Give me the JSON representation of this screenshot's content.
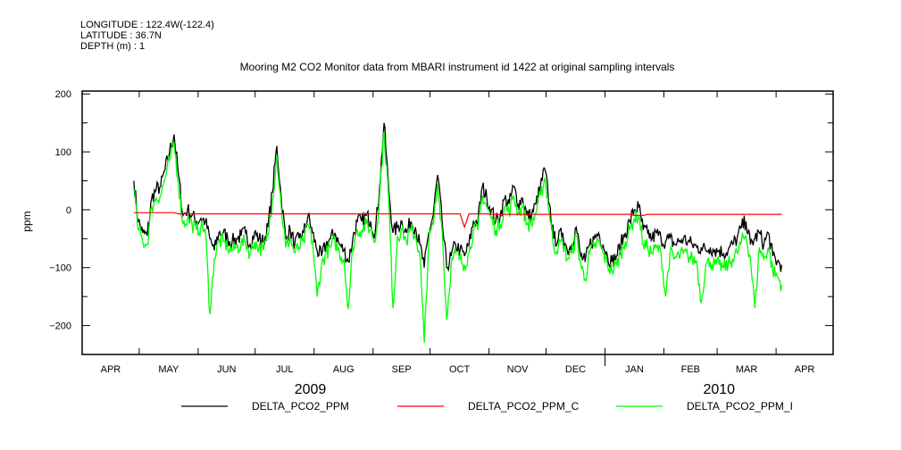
{
  "header": {
    "longitude": "LONGITUDE : 122.4W(-122.4)",
    "latitude": "LATITUDE : 36.7N",
    "depth": "DEPTH (m) : 1"
  },
  "chart_data": {
    "type": "line",
    "title": "Mooring M2 CO2 Monitor data from MBARI instrument id 1422 at original sampling intervals",
    "ylabel": "ppm",
    "xlabel": "",
    "ylim": [
      -250,
      205
    ],
    "yticks": [
      200,
      100,
      0,
      -100,
      -200
    ],
    "yticks_labels": [
      "200",
      "100",
      "0",
      "-100",
      "-200"
    ],
    "x_units": "days since 2009-04-01",
    "xlim": [
      0,
      395
    ],
    "month_boundaries": [
      0,
      30,
      61,
      91,
      122,
      153,
      183,
      214,
      244,
      275,
      306,
      334,
      365,
      395
    ],
    "month_labels": [
      "APR",
      "MAY",
      "JUN",
      "JUL",
      "AUG",
      "SEP",
      "OCT",
      "NOV",
      "DEC",
      "JAN",
      "FEB",
      "MAR",
      "APR"
    ],
    "year_labels": [
      {
        "label": "2009",
        "day": 120
      },
      {
        "label": "2010",
        "day": 335
      }
    ],
    "year_boundary_day": 275,
    "x_start_day": 27.2,
    "x_step_days": 2.35,
    "grid": false,
    "legend_placement": "bottom",
    "series": [
      {
        "name": "DELTA_PCO2_PPM",
        "color": "#000000",
        "values": [
          50,
          -20,
          -40,
          -45,
          20,
          35,
          40,
          70,
          100,
          130,
          60,
          -10,
          0,
          -10,
          -20,
          -15,
          -20,
          -50,
          -70,
          -40,
          -40,
          -50,
          -55,
          -50,
          -45,
          -40,
          -60,
          -40,
          -50,
          -55,
          -30,
          30,
          110,
          20,
          -50,
          -35,
          -60,
          -50,
          -40,
          -10,
          -40,
          -70,
          -80,
          -60,
          -50,
          -40,
          -60,
          -70,
          -90,
          -50,
          -20,
          -20,
          -10,
          -20,
          -40,
          40,
          150,
          40,
          -40,
          -30,
          -20,
          -40,
          -20,
          -30,
          -60,
          -100,
          -40,
          -10,
          60,
          -20,
          -100,
          -80,
          -60,
          -70,
          -80,
          -60,
          -20,
          -20,
          40,
          20,
          0,
          -20,
          -10,
          20,
          10,
          40,
          10,
          20,
          -10,
          -10,
          10,
          40,
          70,
          10,
          -50,
          -50,
          -40,
          -70,
          -60,
          -30,
          -80,
          -90,
          -60,
          -50,
          -40,
          -60,
          -80,
          -90,
          -80,
          -60,
          -40,
          -20,
          0,
          5,
          -35,
          -40,
          -50,
          -40,
          -50,
          -55,
          -50,
          -60,
          -55,
          -50,
          -55,
          -60,
          -65,
          -65,
          -70,
          -65,
          -70,
          -70,
          -75,
          -70,
          -60,
          -50,
          -30,
          -20,
          -60,
          -50,
          -40,
          -60,
          -40,
          -80,
          -90,
          -95
        ]
      },
      {
        "name": "DELTA_PCO2_PPM_C",
        "color": "#ff0000",
        "values": [
          -5,
          -5,
          -5,
          -5,
          -5,
          -5,
          -5,
          -5,
          -5,
          -5,
          -7,
          -7,
          -7,
          -7,
          -7,
          -7,
          -7,
          -7,
          -7,
          -7,
          -7,
          -7,
          -7,
          -7,
          -7,
          -7,
          -7,
          -7,
          -7,
          -7,
          -7,
          -7,
          -7,
          -7,
          -7,
          -7,
          -7,
          -7,
          -7,
          -7,
          -7,
          -7,
          -7,
          -7,
          -7,
          -7,
          -7,
          -7,
          -7,
          -7,
          -7,
          -7,
          -7,
          -7,
          -7,
          -7,
          -7,
          -7,
          -7,
          -7,
          -7,
          -7,
          -7,
          -7,
          -7,
          -7,
          -7,
          -7,
          -7,
          -7,
          -7,
          -7,
          -7,
          -7,
          -30,
          -7,
          -7,
          -7,
          -7,
          -7,
          -8,
          -8,
          -8,
          -8,
          -8,
          -8,
          -8,
          -8,
          -8,
          -8,
          -8,
          -8,
          -8,
          -8,
          -8,
          -8,
          -8,
          -8,
          -8,
          -8,
          -8,
          -8,
          -8,
          -8,
          -8,
          -8,
          -8,
          -8,
          -8,
          -8,
          -8,
          -8,
          -10,
          -10,
          -10,
          -8,
          -8,
          -8,
          -8,
          -8,
          -8,
          -8,
          -8,
          -8,
          -8,
          -8,
          -8,
          -8,
          -8,
          -8,
          -8,
          -8,
          -8,
          -8,
          -8,
          -8,
          -8,
          -8,
          -8,
          -8,
          -8,
          -8,
          -8,
          -8,
          -8,
          -8
        ]
      },
      {
        "name": "DELTA_PCO2_PPM_I",
        "color": "#00ff00",
        "values": [
          35,
          -35,
          -55,
          -60,
          5,
          20,
          25,
          55,
          85,
          115,
          45,
          -25,
          -15,
          -25,
          -35,
          -30,
          -35,
          -180,
          -85,
          -55,
          -55,
          -65,
          -70,
          -65,
          -60,
          -55,
          -75,
          -55,
          -65,
          -70,
          -45,
          15,
          95,
          5,
          -65,
          -50,
          -75,
          -65,
          -55,
          -25,
          -55,
          -150,
          -95,
          -75,
          -65,
          -55,
          -75,
          -85,
          -170,
          -65,
          -35,
          -35,
          -25,
          -35,
          -55,
          25,
          135,
          25,
          -170,
          -45,
          -35,
          -55,
          -35,
          -45,
          -75,
          -230,
          -55,
          -25,
          45,
          -35,
          -190,
          -95,
          -75,
          -85,
          -95,
          -75,
          -35,
          -35,
          25,
          5,
          -15,
          -35,
          -25,
          5,
          -5,
          25,
          -5,
          5,
          -25,
          -25,
          -5,
          25,
          55,
          -5,
          -65,
          -65,
          -55,
          -85,
          -75,
          -45,
          -95,
          -120,
          -75,
          -65,
          -55,
          -75,
          -95,
          -105,
          -95,
          -75,
          -55,
          -35,
          -15,
          -10,
          -60,
          -65,
          -75,
          -65,
          -75,
          -150,
          -75,
          -85,
          -80,
          -75,
          -80,
          -85,
          -90,
          -160,
          -95,
          -90,
          -95,
          -95,
          -100,
          -95,
          -85,
          -75,
          -55,
          -45,
          -85,
          -170,
          -65,
          -85,
          -65,
          -105,
          -115,
          -130
        ]
      }
    ]
  }
}
